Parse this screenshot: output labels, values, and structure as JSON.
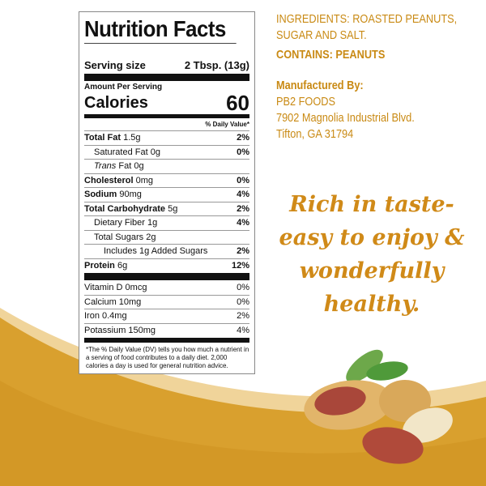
{
  "nutrition": {
    "title": "Nutrition Facts",
    "serving_label": "Serving size",
    "serving_value": "2 Tbsp. (13g)",
    "amount_per_serving": "Amount Per Serving",
    "calories_label": "Calories",
    "calories_value": "60",
    "dv_header": "% Daily Value*",
    "rows": [
      {
        "name": "Total Fat",
        "amount": "1.5g",
        "dv": "2%",
        "bold": true,
        "indent": 0
      },
      {
        "name": "Saturated Fat",
        "amount": "0g",
        "dv": "0%",
        "bold": false,
        "indent": 1
      },
      {
        "name": "Trans",
        "amount": "Fat 0g",
        "dv": "",
        "bold": false,
        "indent": 1
      },
      {
        "name": "Cholesterol",
        "amount": "0mg",
        "dv": "0%",
        "bold": true,
        "indent": 0
      },
      {
        "name": "Sodium",
        "amount": "90mg",
        "dv": "4%",
        "bold": true,
        "indent": 0
      },
      {
        "name": "Total Carbohydrate",
        "amount": "5g",
        "dv": "2%",
        "bold": true,
        "indent": 0
      },
      {
        "name": "Dietary Fiber",
        "amount": "1g",
        "dv": "4%",
        "bold": false,
        "indent": 1
      },
      {
        "name": "Total Sugars",
        "amount": "2g",
        "dv": "",
        "bold": false,
        "indent": 1
      },
      {
        "name": "Includes 1g Added Sugars",
        "amount": "",
        "dv": "2%",
        "bold": false,
        "indent": 2
      },
      {
        "name": "Protein",
        "amount": "6g",
        "dv": "12%",
        "bold": true,
        "indent": 0
      }
    ],
    "vitamins": [
      {
        "name": "Vitamin D 0mcg",
        "dv": "0%"
      },
      {
        "name": "Calcium 10mg",
        "dv": "0%"
      },
      {
        "name": "Iron 0.4mg",
        "dv": "2%"
      },
      {
        "name": "Potassium 150mg",
        "dv": "4%"
      }
    ],
    "footnote": "*The % Daily Value (DV) tells you how much a nutrient in a serving of food contributes to a daily diet. 2,000 calories a day is used for general nutrition advice."
  },
  "info": {
    "ingredients_1": "INGREDIENTS: ROASTED PEANUTS,",
    "ingredients_2": "SUGAR AND SALT.",
    "contains": "CONTAINS: PEANUTS",
    "manufactured_by": "Manufactured By:",
    "company": "PB2 FOODS",
    "address_1": "7902 Magnolia Industrial Blvd.",
    "address_2": "Tifton, GA 31794"
  },
  "slogan": [
    "Rich in taste-",
    "easy to enjoy &",
    "wonderfully",
    "healthy."
  ],
  "colors": {
    "accent": "#c98a14",
    "wave": "#d9a02e",
    "wave_light": "#f0d49a"
  }
}
